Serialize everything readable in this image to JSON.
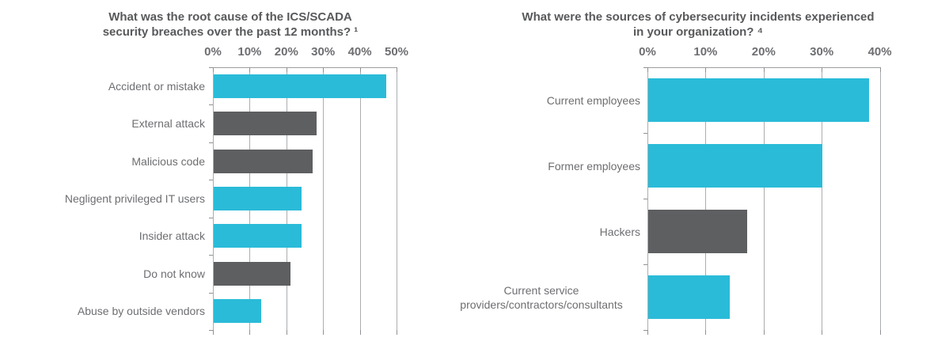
{
  "page": {
    "background": "#FFFFFF",
    "description_colors": {
      "accent_cyan": "#2ABBD8",
      "bar_dark_gray": "#5E5F61",
      "gridline_gray": "#ABADB0",
      "label_text_gray": "#6D6E71",
      "title_text_gray": "#58595B"
    }
  },
  "chart_data": [
    {
      "type": "bar",
      "orientation": "horizontal",
      "title": "What was the root cause of the ICS/SCADA\nsecurity breaches over the past 12 months? ¹",
      "xlabel": "",
      "ylabel": "",
      "xlim": [
        0,
        50
      ],
      "xticks": [
        0,
        10,
        20,
        30,
        40,
        50
      ],
      "tick_suffix": "%",
      "grid": true,
      "legend": false,
      "categories": [
        "Accident or mistake",
        "External attack",
        "Malicious code",
        "Negligent privileged IT users",
        "Insider attack",
        "Do not know",
        "Abuse by outside vendors"
      ],
      "values": [
        47,
        28,
        27,
        24,
        24,
        21,
        13
      ],
      "bar_colors": [
        "#2ABBD8",
        "#5E5F61",
        "#5E5F61",
        "#2ABBD8",
        "#2ABBD8",
        "#5E5F61",
        "#2ABBD8"
      ]
    },
    {
      "type": "bar",
      "orientation": "horizontal",
      "title": "What were the sources of cybersecurity incidents experienced\nin your organization? ⁴",
      "xlabel": "",
      "ylabel": "",
      "xlim": [
        0,
        40
      ],
      "xticks": [
        0,
        10,
        20,
        30,
        40
      ],
      "tick_suffix": "%",
      "grid": true,
      "legend": false,
      "categories": [
        "Current employees",
        "Former employees",
        "Hackers",
        "Current service\nproviders/contractors/consultants"
      ],
      "values": [
        38,
        30,
        17,
        14
      ],
      "bar_colors": [
        "#2ABBD8",
        "#2ABBD8",
        "#5E5F61",
        "#2ABBD8"
      ]
    }
  ]
}
